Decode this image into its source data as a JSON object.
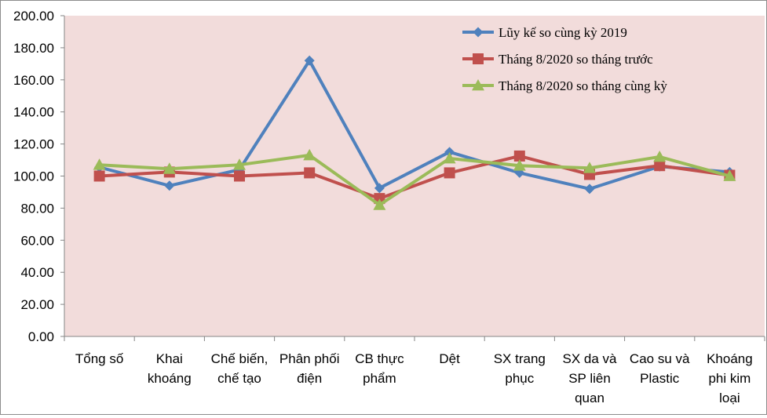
{
  "chart_data": {
    "type": "line",
    "categories": [
      [
        "Tổng số"
      ],
      [
        "Khai",
        "khoáng"
      ],
      [
        "Chế biến,",
        "chế tạo"
      ],
      [
        "Phân phối",
        "điện"
      ],
      [
        "CB thực",
        "phẩm"
      ],
      [
        "Dệt"
      ],
      [
        "SX trang",
        "phục"
      ],
      [
        "SX da và",
        "SP liên",
        "quan"
      ],
      [
        "Cao su và",
        "Plastic"
      ],
      [
        "Khoáng",
        "phi kim",
        "loại"
      ]
    ],
    "ylim": [
      0,
      200
    ],
    "yticks": [
      "0.00",
      "20.00",
      "40.00",
      "60.00",
      "80.00",
      "100.00",
      "120.00",
      "140.00",
      "160.00",
      "180.00",
      "200.00"
    ],
    "legend_position": "top-right",
    "plot_background": "#f2dcdb",
    "series": [
      {
        "name": "Lũy kế so cùng kỳ 2019",
        "color": "#4f81bd",
        "marker": "diamond",
        "values": [
          105.5,
          94,
          104,
          172,
          92.5,
          115,
          102,
          92,
          106,
          102.5
        ]
      },
      {
        "name": "Tháng  8/2020 so tháng trước",
        "color": "#c0504d",
        "marker": "square",
        "values": [
          100,
          102.5,
          100,
          102,
          86,
          102,
          112.5,
          101,
          106.5,
          100.5
        ]
      },
      {
        "name": "Tháng  8/2020 so tháng cùng kỳ",
        "color": "#9bbb59",
        "marker": "triangle",
        "values": [
          107,
          104.5,
          107,
          113,
          82,
          111,
          106.5,
          105,
          112,
          100
        ]
      }
    ]
  }
}
